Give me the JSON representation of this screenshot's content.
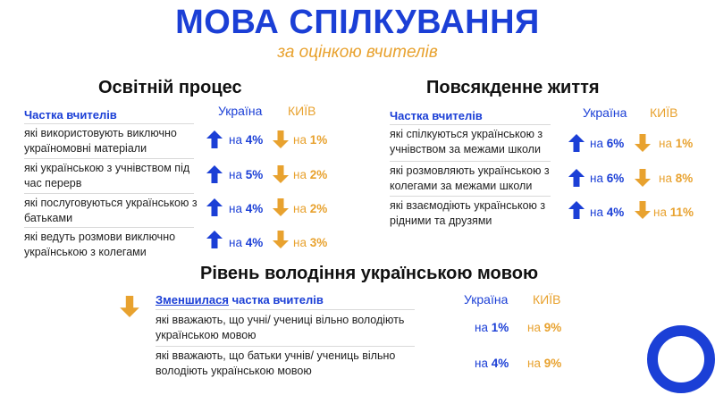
{
  "header": {
    "title": "МОВА СПІЛКУВАННЯ",
    "subtitle": "за оцінкою вчителів"
  },
  "colors": {
    "blue": "#1b3fd6",
    "orange": "#e8a22f"
  },
  "left": {
    "heading": "Освітній процес",
    "label": "Частка вчителів",
    "col_ua": "Україна",
    "col_kv": "КИЇВ",
    "rows": [
      {
        "text": "які використовують виключно україномовні матеріали",
        "ua_prefix": "на",
        "ua": "4%",
        "kv_prefix": "на",
        "kv": "1%"
      },
      {
        "text": "які українською з учнівством під час перерв",
        "ua_prefix": "на",
        "ua": "5%",
        "kv_prefix": "на",
        "kv": "2%"
      },
      {
        "text": "які послуговуються українською з батьками",
        "ua_prefix": "на",
        "ua": "4%",
        "kv_prefix": "на",
        "kv": "2%"
      },
      {
        "text": "які ведуть розмови виключно українською з колегами",
        "ua_prefix": "на",
        "ua": "4%",
        "kv_prefix": "на",
        "kv": "3%"
      }
    ]
  },
  "right": {
    "heading": "Повсякденне життя",
    "label": "Частка вчителів",
    "col_ua": "Україна",
    "col_kv": "КИЇВ",
    "rows": [
      {
        "text": "які спілкуються українською з учнівством за межами школи",
        "ua_prefix": "на",
        "ua": "6%",
        "kv_prefix": "на",
        "kv": "1%"
      },
      {
        "text": "які розмовляють українською з колегами за межами школи",
        "ua_prefix": "на",
        "ua": "6%",
        "kv_prefix": "на",
        "kv": "8%"
      },
      {
        "text": "які взаємодіють українською з рідними та друзями",
        "ua_prefix": "на",
        "ua": "4%",
        "kv_prefix": "на",
        "kv": "11%"
      }
    ]
  },
  "bottom": {
    "heading": "Рівень володіння українською мовою",
    "label_underlined": "Зменшилася",
    "label_rest": " частка вчителів",
    "col_ua": "Україна",
    "col_kv": "КИЇВ",
    "rows": [
      {
        "text": "які вважають, що учні/ учениці вільно володіють українською мовою",
        "ua_prefix": "на",
        "ua": "1%",
        "kv_prefix": "на",
        "kv": "9%"
      },
      {
        "text": "які вважають, що батьки учнів/ учениць вільно володіють українською мовою",
        "ua_prefix": "на",
        "ua": "4%",
        "kv_prefix": "на",
        "kv": "9%"
      }
    ]
  },
  "icons": {
    "up": "arrow-up-icon",
    "down": "arrow-down-icon",
    "ring": "ring-decoration"
  }
}
